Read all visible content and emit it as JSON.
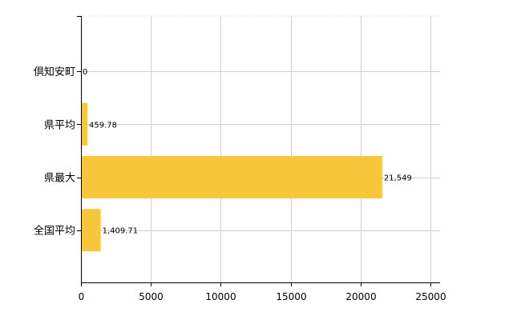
{
  "chart_data": {
    "type": "bar",
    "orientation": "horizontal",
    "categories": [
      "倶知安町",
      "県平均",
      "県最大",
      "全国平均"
    ],
    "values": [
      0,
      459.78,
      21549,
      1409.71
    ],
    "value_labels": [
      "0",
      "459.78",
      "21,549",
      "1,409.71"
    ],
    "xlim": [
      0,
      25000
    ],
    "xticks": [
      0,
      5000,
      10000,
      15000,
      20000,
      25000
    ],
    "xtick_labels": [
      "0",
      "5000",
      "10000",
      "15000",
      "20000",
      "25000"
    ],
    "title": "",
    "xlabel": "",
    "ylabel": "",
    "grid": true,
    "bar_color": "#f8c63a"
  }
}
